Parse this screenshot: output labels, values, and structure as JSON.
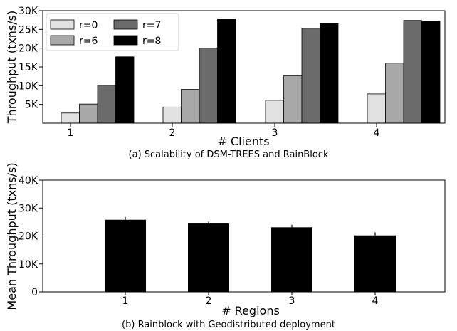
{
  "charts": {
    "a": {
      "caption": "(a) Scalability of DSM-TREES and RainBlock",
      "chart_data": {
        "type": "bar",
        "categories": [
          "1",
          "2",
          "3",
          "4"
        ],
        "series": [
          {
            "name": "r=0",
            "color": "#e1e1e1",
            "values": [
              2700,
              4300,
              6100,
              7800
            ]
          },
          {
            "name": "r=6",
            "color": "#a8a8a8",
            "values": [
              5100,
              9000,
              12600,
              16000
            ]
          },
          {
            "name": "r=7",
            "color": "#6b6b6b",
            "values": [
              10100,
              20000,
              25300,
              27400
            ]
          },
          {
            "name": "r=8",
            "color": "#000000",
            "values": [
              17700,
              27800,
              26500,
              27200
            ]
          }
        ],
        "xlabel": "# Clients",
        "ylabel": "Throughput (txns/s)",
        "ylim": [
          0,
          30000
        ],
        "yticks": [
          "5K",
          "10K",
          "15K",
          "20K",
          "25K",
          "30K"
        ],
        "legend_position": "top-left",
        "grid": false
      }
    },
    "b": {
      "caption": "(b) Rainblock with Geodistributed deployment",
      "chart_data": {
        "type": "bar",
        "categories": [
          "1",
          "2",
          "3",
          "4"
        ],
        "values": [
          25800,
          24700,
          23100,
          20200
        ],
        "errors": [
          1000,
          400,
          900,
          1100
        ],
        "color": "#000000",
        "xlabel": "# Regions",
        "ylabel": "Mean Throughput (txns/s)",
        "ylim": [
          0,
          40000
        ],
        "yticks": [
          "0",
          "10K",
          "20K",
          "30K",
          "40K"
        ],
        "grid": false
      }
    }
  }
}
